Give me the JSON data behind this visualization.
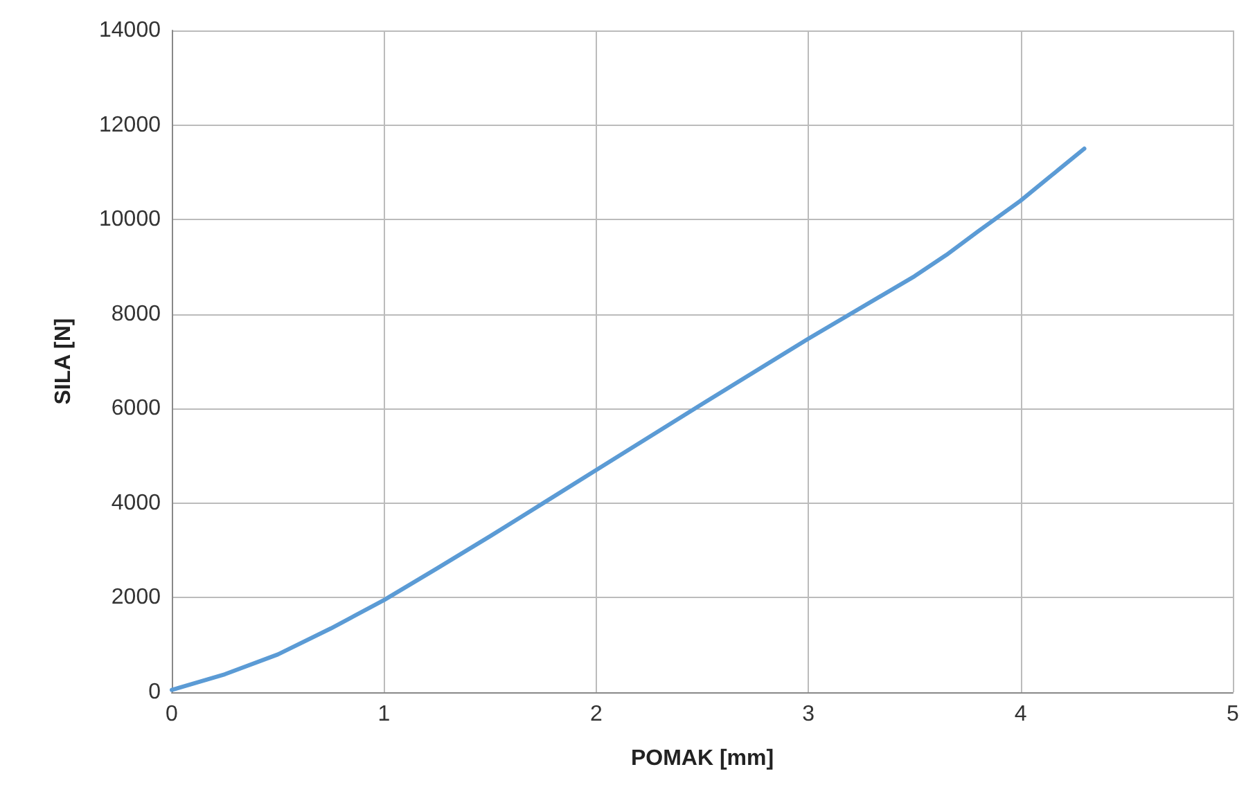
{
  "chart_data": {
    "type": "line",
    "xlabel": "POMAK [mm]",
    "ylabel": "SILA [N]",
    "x": [
      0,
      0.1,
      0.25,
      0.5,
      0.75,
      1,
      1.25,
      1.5,
      1.75,
      2,
      2.5,
      3,
      3.5,
      3.65,
      3.8,
      4,
      4.15,
      4.3
    ],
    "series": [
      {
        "color": "#5b9bd5",
        "values": [
          50,
          180,
          380,
          800,
          1350,
          1950,
          2620,
          3300,
          4000,
          4700,
          6100,
          7480,
          8800,
          9250,
          9750,
          10400,
          10950,
          11500
        ]
      }
    ],
    "xlim": [
      0,
      5
    ],
    "xticks": [
      0,
      1,
      2,
      3,
      4,
      5
    ],
    "ylim": [
      0,
      14000
    ],
    "yticks": [
      0,
      2000,
      4000,
      6000,
      8000,
      10000,
      12000,
      14000
    ],
    "grid": true,
    "marker": "none",
    "line_style": "solid"
  }
}
